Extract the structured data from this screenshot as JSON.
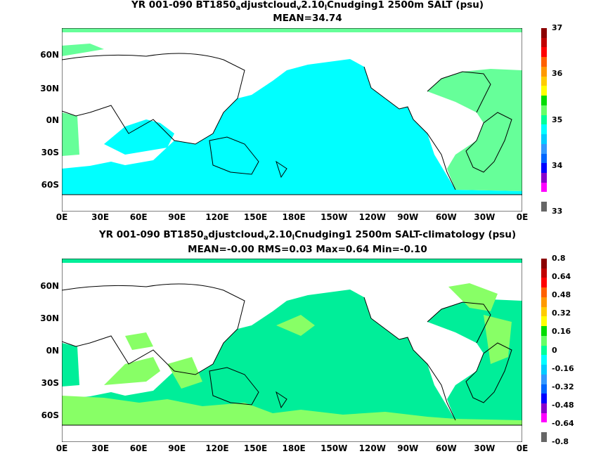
{
  "chart_data": [
    {
      "type": "heatmap",
      "title_parts": [
        "YR 001-090 BT1850",
        "a",
        "djustcloud",
        "v",
        "2.10",
        "l",
        "Cnudging1 2500m SALT (psu)"
      ],
      "subtitle": "MEAN=34.74",
      "x_ticks": [
        "0E",
        "30E",
        "60E",
        "90E",
        "120E",
        "150E",
        "180E",
        "150W",
        "120W",
        "90W",
        "60W",
        "30W",
        "0E"
      ],
      "y_ticks": [
        "60N",
        "30N",
        "0N",
        "30S",
        "60S"
      ],
      "colorbar_ticks": [
        "37",
        "36",
        "35",
        "34",
        "33"
      ],
      "colorbar_colors": [
        "#8b0000",
        "#c00000",
        "#ff0000",
        "#ff6000",
        "#ff9900",
        "#ffcc00",
        "#ffff00",
        "#00dd00",
        "#66ff66",
        "#00ff99",
        "#00ffff",
        "#00ccff",
        "#3399ff",
        "#0066ff",
        "#0000ff",
        "#8800cc",
        "#ff00ff",
        "#ffffff",
        "#666666"
      ],
      "regions": [
        {
          "name": "pacific-indian",
          "value": 34.7,
          "color": "#00ffff"
        },
        {
          "name": "atlantic",
          "value": 34.9,
          "color": "#66ff99"
        }
      ]
    },
    {
      "type": "heatmap",
      "title_parts": [
        "YR 001-090 BT1850",
        "a",
        "djustcloud",
        "v",
        "2.10",
        "l",
        "Cnudging1 2500m SALT-climatology (psu)"
      ],
      "subtitle": "MEAN=-0.00   RMS=0.03   Max=0.64   Min=-0.10",
      "x_ticks": [
        "0E",
        "30E",
        "60E",
        "90E",
        "120E",
        "150E",
        "180E",
        "150W",
        "120W",
        "90W",
        "60W",
        "30W",
        "0E"
      ],
      "y_ticks": [
        "60N",
        "30N",
        "0N",
        "30S",
        "60S"
      ],
      "colorbar_ticks": [
        "0.8",
        "0.64",
        "0.48",
        "0.32",
        "0.16",
        "0",
        "-0.16",
        "-0.32",
        "-0.48",
        "-0.64",
        "-0.8"
      ],
      "colorbar_colors": [
        "#8b0000",
        "#c00000",
        "#ff0000",
        "#ff6000",
        "#ff9900",
        "#ffcc00",
        "#ffff00",
        "#00dd00",
        "#66ff66",
        "#00ff99",
        "#00ffff",
        "#00ccff",
        "#3399ff",
        "#0066ff",
        "#0000ff",
        "#8800cc",
        "#ff00ff",
        "#ffffff",
        "#666666"
      ],
      "regions": [
        {
          "name": "background-anomaly",
          "value": 0.0,
          "color": "#00ee99"
        },
        {
          "name": "positive-anomaly",
          "value": 0.1,
          "color": "#66ff66"
        }
      ]
    }
  ]
}
